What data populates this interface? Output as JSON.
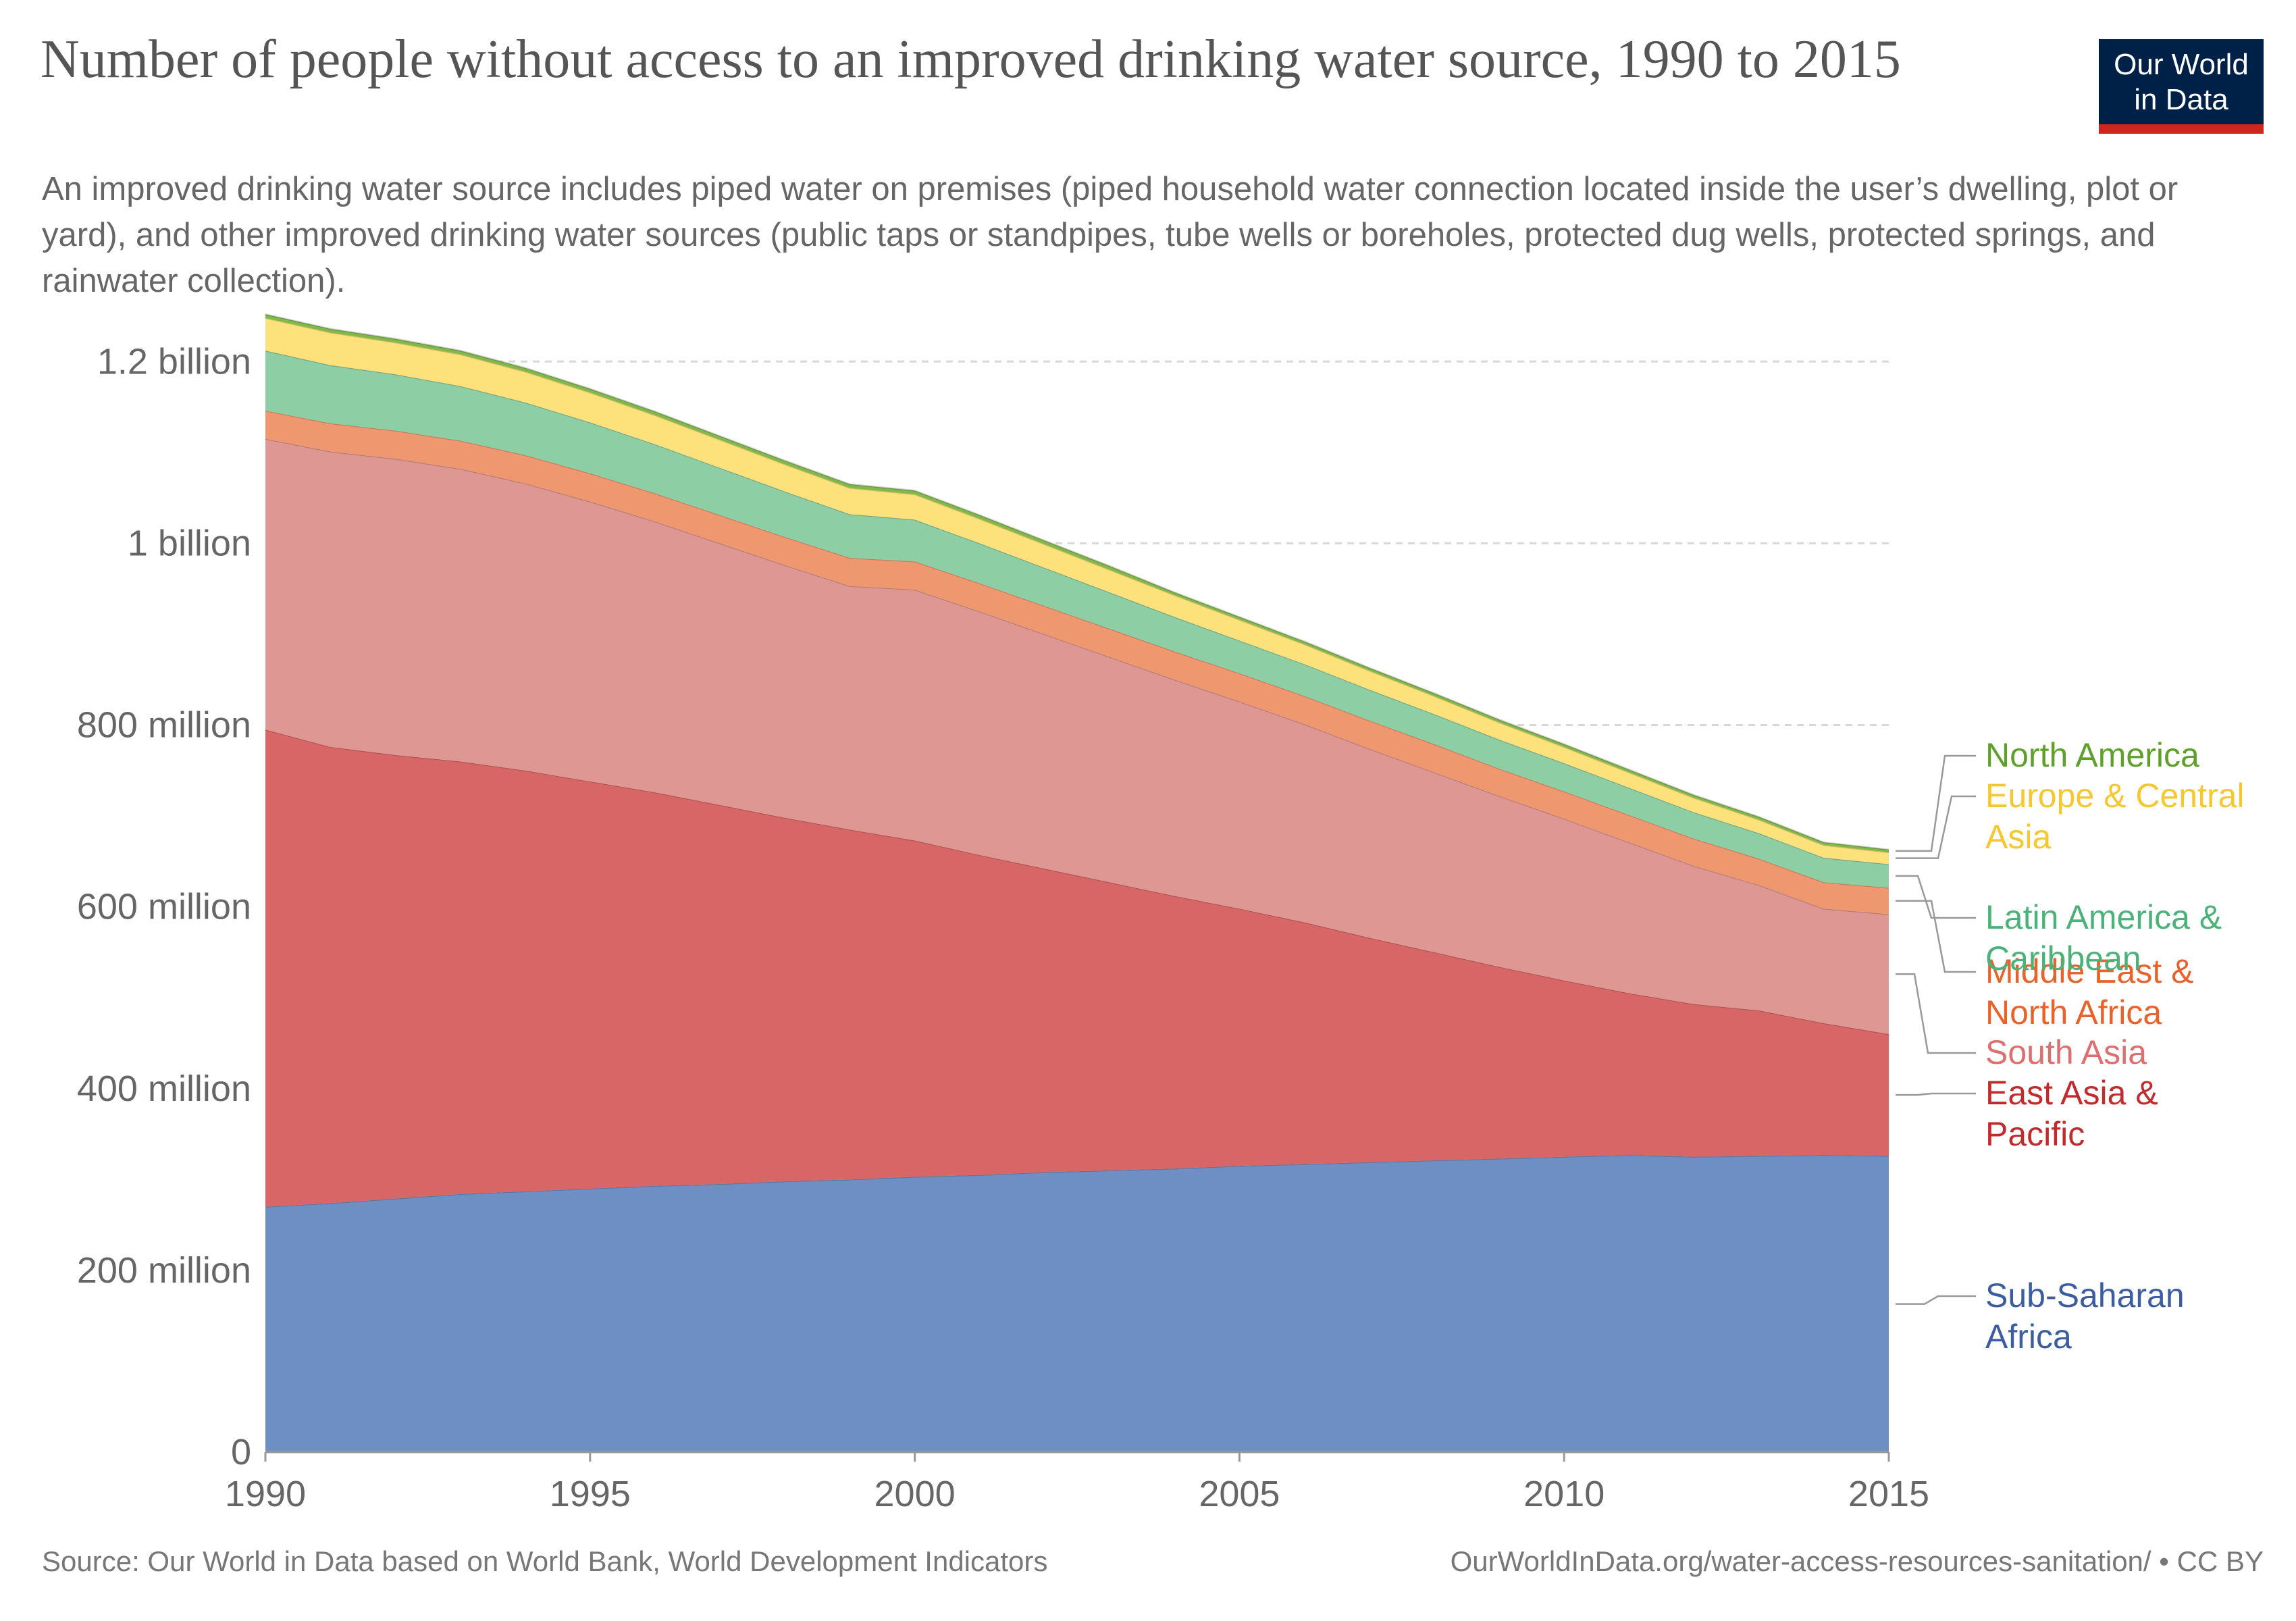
{
  "header": {
    "title": "Number of people without access to an improved drinking water source, 1990 to 2015",
    "subtitle": "An improved drinking water source includes piped water on premises (piped household water connection located inside the user’s dwelling, plot or yard), and other improved drinking water sources (public taps or standpipes, tube wells or boreholes, protected dug wells, protected springs, and rainwater collection).",
    "logo_line1": "Our World",
    "logo_line2": "in Data"
  },
  "footer": {
    "source": "Source: Our World in Data based on World Bank, World Development Indicators",
    "url": "OurWorldInData.org/water-access-resources-sanitation/ • CC BY"
  },
  "chart_data": {
    "type": "area",
    "stacked": true,
    "x": [
      1990,
      1991,
      1992,
      1993,
      1994,
      1995,
      1996,
      1997,
      1998,
      1999,
      2000,
      2001,
      2002,
      2003,
      2004,
      2005,
      2006,
      2007,
      2008,
      2009,
      2010,
      2011,
      2012,
      2013,
      2014,
      2015
    ],
    "xlim": [
      1990,
      2015
    ],
    "x_ticks": [
      1990,
      1995,
      2000,
      2005,
      2010,
      2015
    ],
    "ylim": [
      0,
      1250000000
    ],
    "y_ticks": [
      0,
      200000000,
      400000000,
      600000000,
      800000000,
      1000000000,
      1200000000
    ],
    "y_tick_labels": [
      "0",
      "200 million",
      "400 million",
      "600 million",
      "800 million",
      "1 billion",
      "1.2 billion"
    ],
    "grid": "horizontal dashed",
    "legend": "right, labels at series ends",
    "series": [
      {
        "name": "Sub-Saharan Africa",
        "label_lines": [
          "Sub-Saharan",
          "Africa"
        ],
        "color": "#6e8fc4",
        "label_color": "#3d5da1",
        "values": [
          270000000,
          274000000,
          279000000,
          284000000,
          287000000,
          290000000,
          293000000,
          295000000,
          298000000,
          300000000,
          303000000,
          305000000,
          308000000,
          310000000,
          312000000,
          315000000,
          317000000,
          319000000,
          321000000,
          323000000,
          325000000,
          327000000,
          325000000,
          326000000,
          327000000,
          326000000
        ]
      },
      {
        "name": "East Asia & Pacific",
        "label_lines": [
          "East Asia &",
          "Pacific"
        ],
        "color": "#d96666",
        "label_color": "#c02b2e",
        "values": [
          525000000,
          502000000,
          488000000,
          476000000,
          463000000,
          448000000,
          433000000,
          417000000,
          400000000,
          385000000,
          370000000,
          352000000,
          334000000,
          317000000,
          300000000,
          283000000,
          266000000,
          247000000,
          229000000,
          211000000,
          194000000,
          178000000,
          168000000,
          160000000,
          145000000,
          134000000
        ]
      },
      {
        "name": "South Asia",
        "label_lines": [
          "South Asia"
        ],
        "color": "#de9792",
        "label_color": "#dc6f6f",
        "values": [
          320000000,
          325000000,
          326000000,
          322000000,
          316000000,
          308000000,
          298000000,
          288000000,
          278000000,
          268000000,
          276000000,
          268000000,
          258000000,
          248000000,
          238000000,
          228000000,
          218000000,
          208000000,
          198000000,
          188000000,
          178000000,
          166000000,
          152000000,
          138000000,
          126000000,
          132000000
        ]
      },
      {
        "name": "Middle East & North Africa",
        "label_lines": [
          "Middle East &",
          "North Africa"
        ],
        "color": "#ef9870",
        "label_color": "#e8632c",
        "values": [
          31000000,
          31000000,
          31000000,
          31000000,
          31000000,
          31000000,
          31000000,
          31000000,
          31000000,
          31000000,
          31000000,
          31000000,
          31000000,
          31000000,
          31000000,
          31000000,
          31000000,
          31000000,
          31000000,
          30000000,
          30000000,
          30000000,
          30000000,
          29000000,
          29000000,
          29000000
        ]
      },
      {
        "name": "Latin America & Caribbean",
        "label_lines": [
          "Latin America &",
          "Caribbean"
        ],
        "color": "#8ecea4",
        "label_color": "#4db27a",
        "values": [
          66000000,
          64000000,
          62000000,
          60000000,
          58000000,
          56000000,
          54000000,
          52000000,
          50000000,
          48000000,
          46000000,
          44000000,
          42000000,
          40000000,
          38000000,
          36000000,
          35000000,
          34000000,
          33000000,
          32000000,
          31000000,
          30000000,
          29000000,
          28000000,
          27000000,
          26000000
        ]
      },
      {
        "name": "Europe & Central Asia",
        "label_lines": [
          "Europe & Central",
          "Asia"
        ],
        "color": "#fde17a",
        "label_color": "#f5c831",
        "values": [
          36000000,
          36000000,
          35000000,
          35000000,
          34000000,
          33000000,
          32000000,
          31000000,
          30000000,
          29000000,
          28000000,
          27000000,
          26000000,
          25000000,
          24000000,
          23000000,
          22000000,
          21000000,
          20000000,
          19000000,
          18000000,
          17000000,
          16000000,
          15000000,
          14000000,
          13000000
        ]
      },
      {
        "name": "North America",
        "label_lines": [
          "North America"
        ],
        "color": "#80b94a",
        "label_color": "#5f9f2c",
        "values": [
          4000000,
          4000000,
          4000000,
          4000000,
          4000000,
          4000000,
          4000000,
          4000000,
          4000000,
          4000000,
          4000000,
          4000000,
          4000000,
          4000000,
          3000000,
          3000000,
          3000000,
          3000000,
          3000000,
          3000000,
          3000000,
          3000000,
          3000000,
          3000000,
          3000000,
          3000000
        ]
      }
    ]
  }
}
